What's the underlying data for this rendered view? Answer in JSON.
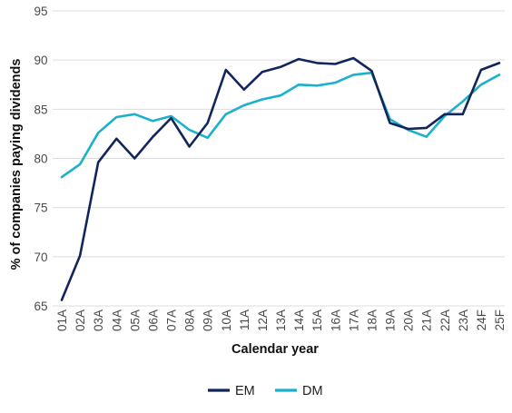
{
  "chart_data": {
    "type": "line",
    "title": "",
    "xlabel": "Calendar year",
    "ylabel": "% of companies paying dividends",
    "ylim": [
      65,
      95
    ],
    "yticks": [
      65,
      70,
      75,
      80,
      85,
      90,
      95
    ],
    "grid": "horizontal",
    "legend_position": "bottom-center",
    "categories": [
      "01A",
      "02A",
      "03A",
      "04A",
      "05A",
      "06A",
      "07A",
      "08A",
      "09A",
      "10A",
      "11A",
      "12A",
      "13A",
      "14A",
      "15A",
      "16A",
      "17A",
      "18A",
      "19A",
      "20A",
      "21A",
      "22A",
      "23A",
      "24F",
      "25F"
    ],
    "series": [
      {
        "name": "EM",
        "color": "#13265c",
        "values": [
          65.6,
          70.1,
          79.6,
          82.0,
          80.0,
          82.2,
          84.1,
          81.2,
          83.6,
          89.0,
          87.0,
          88.8,
          89.3,
          90.1,
          89.7,
          89.6,
          90.2,
          88.9,
          83.6,
          83.0,
          83.1,
          84.5,
          84.5,
          89.0,
          89.7
        ]
      },
      {
        "name": "DM",
        "color": "#1bb1cc",
        "values": [
          78.1,
          79.4,
          82.6,
          84.2,
          84.5,
          83.8,
          84.3,
          82.9,
          82.1,
          84.5,
          85.4,
          86.0,
          86.4,
          87.5,
          87.4,
          87.7,
          88.5,
          88.7,
          84.0,
          82.9,
          82.2,
          84.3,
          85.8,
          87.5,
          88.5
        ]
      }
    ]
  }
}
